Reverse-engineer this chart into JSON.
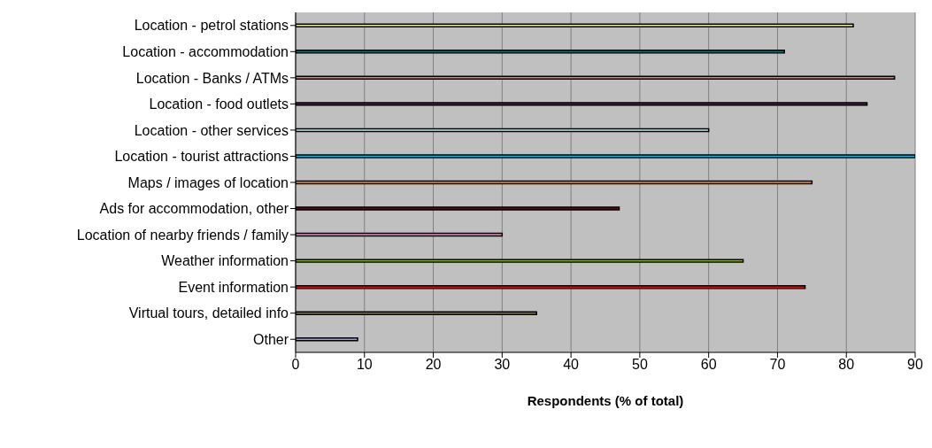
{
  "chart_data": {
    "type": "bar",
    "orientation": "horizontal",
    "xlabel": "Respondents (% of total)",
    "categories": [
      "Location - petrol stations",
      "Location - accommodation",
      "Location - Banks / ATMs",
      "Location - food outlets",
      "Location - other services",
      "Location - tourist attractions",
      "Maps / images of location",
      "Ads for accommodation, other",
      "Location of nearby friends / family",
      "Weather information",
      "Event information",
      "Virtual tours, detailed info",
      "Other"
    ],
    "values": [
      81,
      71,
      87,
      83,
      60,
      90,
      75,
      47,
      30,
      65,
      74,
      35,
      9
    ],
    "colors": [
      "#eeee88",
      "#007070",
      "#f07878",
      "#800080",
      "#c8f4f4",
      "#00c0f0",
      "#f89800",
      "#800000",
      "#f090c0",
      "#90c000",
      "#f00000",
      "#808000",
      "#9898f0"
    ],
    "xlim": [
      0,
      90
    ],
    "xticks": [
      0,
      10,
      20,
      30,
      40,
      50,
      60,
      70,
      80,
      90
    ],
    "grid": "x"
  }
}
